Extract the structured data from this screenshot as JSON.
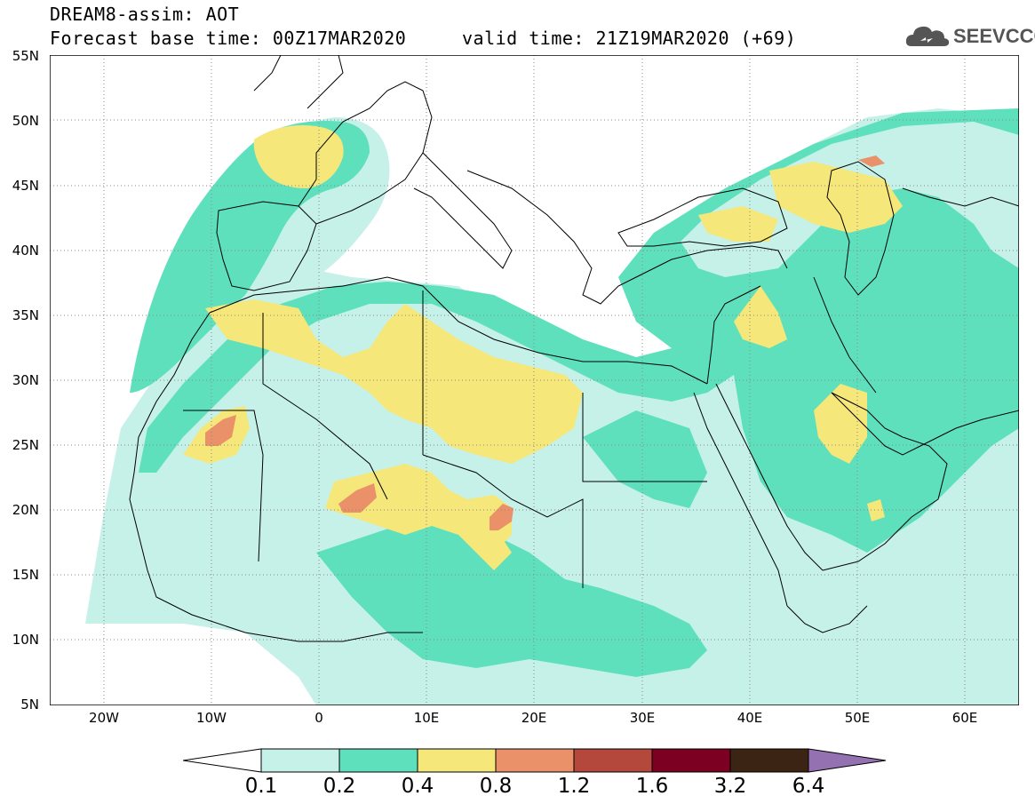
{
  "header": {
    "title": "DREAM8-assim: AOT",
    "subtitle": "Forecast base time: 00Z17MAR2020     valid time: 21Z19MAR2020 (+69)"
  },
  "logo": {
    "text": "SEEVCCC",
    "icon": "cloud-icon"
  },
  "map": {
    "lat_labels": [
      "55N",
      "50N",
      "45N",
      "40N",
      "35N",
      "30N",
      "25N",
      "20N",
      "15N",
      "10N",
      "5N"
    ],
    "lon_labels": [
      "20W",
      "10W",
      "0",
      "10E",
      "20E",
      "30E",
      "40E",
      "50E",
      "60E"
    ]
  },
  "legend": {
    "labels": [
      "0.1",
      "0.2",
      "0.4",
      "0.8",
      "1.2",
      "1.6",
      "3.2",
      "6.4"
    ],
    "colors": [
      "#ffffff",
      "#c6f1e9",
      "#5ee0bd",
      "#f5e779",
      "#eb9169",
      "#b5483d",
      "#7b0021",
      "#3b2414",
      "#9471b0"
    ]
  }
}
